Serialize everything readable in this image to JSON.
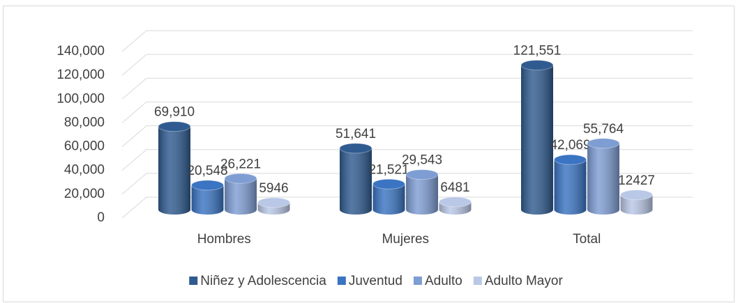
{
  "chart_data": {
    "type": "bar3d",
    "categories": [
      "Hombres",
      "Mujeres",
      "Total"
    ],
    "series": [
      {
        "name": "Niñez y Adolescencia",
        "color": "#2f5b90",
        "values": [
          69910,
          51641,
          121551
        ],
        "value_labels": [
          "69,910",
          "51,641",
          "121,551"
        ]
      },
      {
        "name": "Juventud",
        "color": "#3a74c2",
        "values": [
          20548,
          21521,
          42069
        ],
        "value_labels": [
          "20,548",
          "21,521",
          "42,069"
        ]
      },
      {
        "name": "Adulto",
        "color": "#7e9dd3",
        "values": [
          26221,
          29543,
          55764
        ],
        "value_labels": [
          "26,221",
          "29,543",
          "55,764"
        ]
      },
      {
        "name": "Adulto Mayor",
        "color": "#b9c8e7",
        "values": [
          5946,
          6481,
          12427
        ]
      }
    ],
    "ylim": [
      0,
      140000
    ],
    "yticks": [
      0,
      {
        "value": 20000,
        "label": "20,000"
      },
      {
        "value": 40000,
        "label": "40,000"
      },
      {
        "value": 60000,
        "label": "60,000"
      },
      {
        "value": 80000,
        "label": "80,000"
      },
      {
        "value": 100000,
        "label": "100,000"
      },
      {
        "value": 120000,
        "label": "120,000"
      },
      {
        "value": 140000,
        "label": "140,000"
      }
    ],
    "grid": true,
    "legend": "bottom"
  }
}
